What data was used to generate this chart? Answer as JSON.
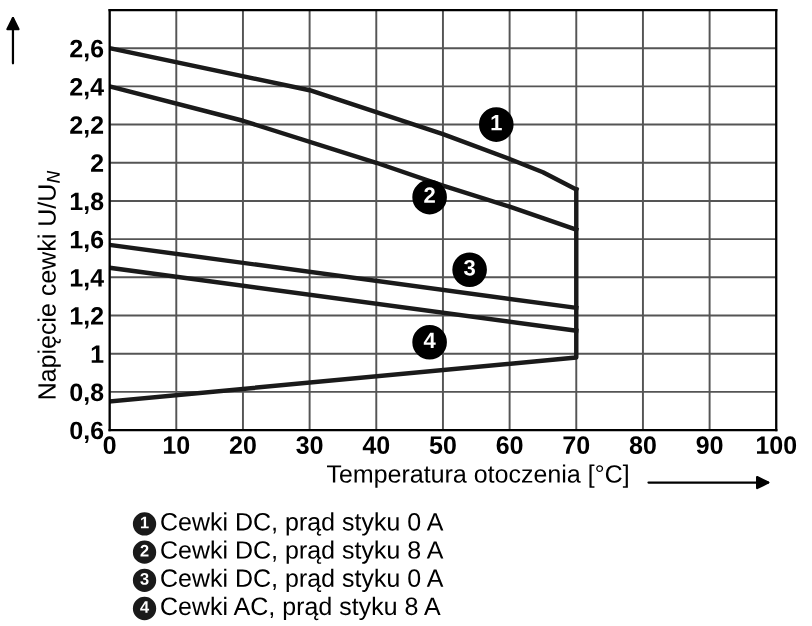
{
  "chart_data": {
    "type": "line",
    "xlabel": "Temperatura otoczenia [°C]",
    "ylabel": "Napięcie cewki U/U$_{N}$",
    "xlim": [
      0,
      100
    ],
    "xticks": [
      0,
      10,
      20,
      30,
      40,
      50,
      60,
      70,
      80,
      90,
      100
    ],
    "ylim": [
      0.6,
      2.8
    ],
    "yticks": [
      {
        "value": 0.6,
        "label": "0,6"
      },
      {
        "value": 0.8,
        "label": "0,8"
      },
      {
        "value": 1,
        "label": "1"
      },
      {
        "value": 1.2,
        "label": "1,2"
      },
      {
        "value": 1.4,
        "label": "1,4"
      },
      {
        "value": 1.6,
        "label": "1,6"
      },
      {
        "value": 1.8,
        "label": "1,8"
      },
      {
        "value": 2,
        "label": "2"
      },
      {
        "value": 2.2,
        "label": "2,2"
      },
      {
        "value": 2.4,
        "label": "2,4"
      },
      {
        "value": 2.6,
        "label": "2,6"
      },
      {
        "value": 2.8,
        "label": null
      }
    ],
    "grid": true,
    "legend": "bottom",
    "marker": "none",
    "line_style": "solid",
    "series": [
      {
        "name": "Cewki DC, prąd styku 0 A",
        "color": "#1a1a1a",
        "x": [
          0,
          30,
          50,
          60,
          65,
          70
        ],
        "values": [
          2.6,
          2.38,
          2.15,
          2.02,
          1.95,
          1.86
        ]
      },
      {
        "name": "Cewki DC, prąd styku 8 A",
        "color": "#1a1a1a",
        "x": [
          0,
          20,
          40,
          50,
          60,
          70
        ],
        "values": [
          2.4,
          2.22,
          2.0,
          1.88,
          1.77,
          1.65
        ]
      },
      {
        "name": "Cewki DC, prąd styku 0 A",
        "color": "#1a1a1a",
        "x": [
          0,
          70
        ],
        "values": [
          1.57,
          1.24
        ]
      },
      {
        "name": "Cewki AC, prąd styku 8 A",
        "color": "#1a1a1a",
        "x": [
          0,
          70
        ],
        "values": [
          1.45,
          1.12
        ]
      },
      {
        "color": "#1a1a1a",
        "x": [
          0,
          70,
          70
        ],
        "values": [
          0.75,
          0.98,
          1.86
        ]
      }
    ],
    "annotations": [
      {
        "text": "1",
        "x": 58,
        "y": 2.2
      },
      {
        "text": "2",
        "x": 48,
        "y": 1.82
      },
      {
        "text": "3",
        "x": 54,
        "y": 1.44
      },
      {
        "text": "4",
        "x": 48,
        "y": 1.06
      }
    ]
  }
}
